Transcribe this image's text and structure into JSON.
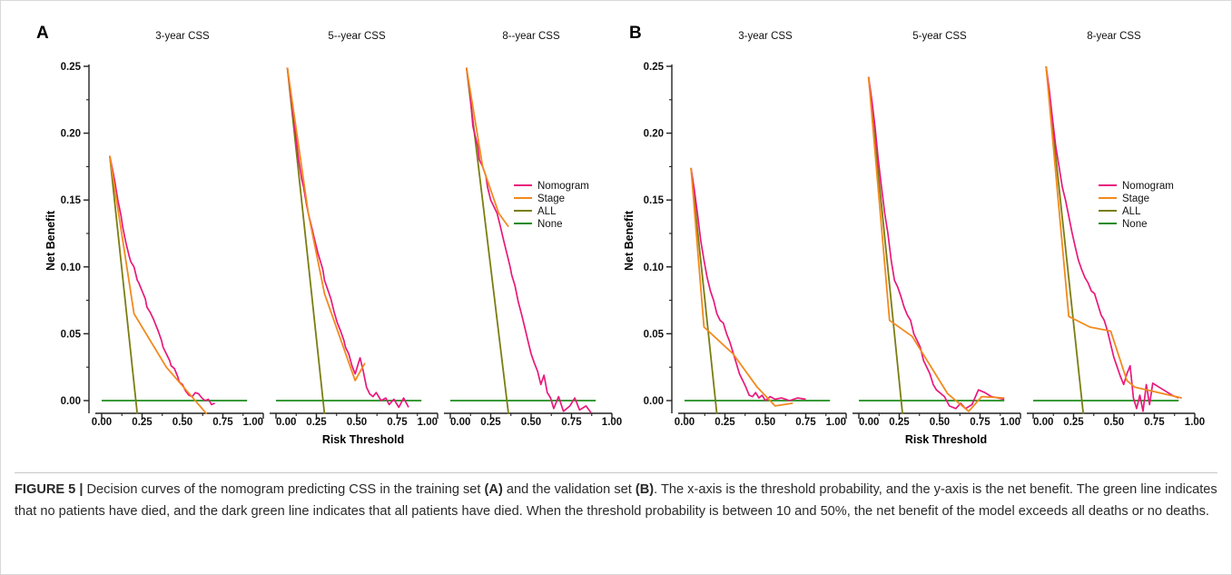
{
  "figure_caption": {
    "label": "FIGURE 5 |",
    "part1": " Decision curves of the nomogram predicting CSS in the training set ",
    "ref_a": "(A)",
    "part2": " and the validation set ",
    "ref_b": "(B)",
    "part3": ". The x-axis is the threshold probability, and the y-axis is the net benefit. The green line indicates that no patients have died, and the dark green line indicates that all patients have died. When the threshold probability is between 10 and 50%, the net benefit of the model exceeds all deaths or no deaths."
  },
  "colors": {
    "nomogram": "#e8197c",
    "stage": "#f28a1e",
    "all": "#7b7d12",
    "none": "#1d8b1d",
    "axis": "#222222"
  },
  "chart_data": [
    {
      "type": "line",
      "panel_label": "A",
      "ylabel": "Net Benefit",
      "xlabel": "Risk Threshold",
      "ylim": [
        -0.01,
        0.25
      ],
      "xlim": [
        0,
        1.0
      ],
      "yticks": [
        "0.00",
        "0.05",
        "0.10",
        "0.15",
        "0.20",
        "0.25"
      ],
      "xtick_labels": [
        "0.00",
        "0.25",
        "0.50",
        "0.75",
        "1.00"
      ],
      "legend": [
        "Nomogram",
        "Stage",
        "ALL",
        "None"
      ],
      "legend_position": "right",
      "subplots": [
        {
          "title": "3-year CSS",
          "series": [
            {
              "name": "Nomogram",
              "x": [
                0.05,
                0.08,
                0.1,
                0.12,
                0.13,
                0.15,
                0.17,
                0.18,
                0.2,
                0.22,
                0.23,
                0.25,
                0.27,
                0.28,
                0.3,
                0.32,
                0.33,
                0.35,
                0.37,
                0.38,
                0.4,
                0.42,
                0.43,
                0.45,
                0.47,
                0.48,
                0.5,
                0.52,
                0.54,
                0.56,
                0.58,
                0.6,
                0.62,
                0.64,
                0.66,
                0.68,
                0.7
              ],
              "y": [
                0.183,
                0.165,
                0.15,
                0.138,
                0.13,
                0.118,
                0.108,
                0.104,
                0.1,
                0.09,
                0.088,
                0.082,
                0.076,
                0.07,
                0.066,
                0.061,
                0.058,
                0.052,
                0.045,
                0.04,
                0.035,
                0.03,
                0.026,
                0.024,
                0.018,
                0.014,
                0.012,
                0.007,
                0.004,
                0.003,
                0.006,
                0.005,
                0.002,
                0.0,
                0.001,
                -0.003,
                -0.002
              ]
            },
            {
              "name": "Stage",
              "x": [
                0.05,
                0.2,
                0.4,
                0.65
              ],
              "y": [
                0.183,
                0.065,
                0.025,
                -0.01
              ]
            },
            {
              "name": "ALL",
              "x": [
                0.05,
                0.22
              ],
              "y": [
                0.183,
                -0.01
              ]
            },
            {
              "name": "None",
              "x": [
                0.0,
                0.9
              ],
              "y": [
                0.0,
                0.0
              ]
            }
          ]
        },
        {
          "title": "5--year CSS",
          "series": [
            {
              "name": "Nomogram",
              "x": [
                0.07,
                0.1,
                0.12,
                0.14,
                0.16,
                0.17,
                0.19,
                0.2,
                0.22,
                0.24,
                0.26,
                0.27,
                0.29,
                0.3,
                0.32,
                0.34,
                0.36,
                0.38,
                0.4,
                0.42,
                0.43,
                0.45,
                0.47,
                0.49,
                0.51,
                0.52,
                0.54,
                0.56,
                0.58,
                0.6,
                0.62,
                0.65,
                0.68,
                0.7,
                0.73,
                0.76,
                0.79,
                0.82
              ],
              "y": [
                0.249,
                0.22,
                0.2,
                0.18,
                0.165,
                0.16,
                0.146,
                0.14,
                0.13,
                0.12,
                0.11,
                0.106,
                0.098,
                0.09,
                0.083,
                0.076,
                0.066,
                0.058,
                0.052,
                0.045,
                0.04,
                0.035,
                0.026,
                0.02,
                0.028,
                0.032,
                0.022,
                0.01,
                0.005,
                0.003,
                0.006,
                0.0,
                0.002,
                -0.003,
                0.001,
                -0.005,
                0.002,
                -0.005
              ]
            },
            {
              "name": "Stage",
              "x": [
                0.07,
                0.2,
                0.3,
                0.49,
                0.55
              ],
              "y": [
                0.249,
                0.14,
                0.08,
                0.015,
                0.028
              ]
            },
            {
              "name": "ALL",
              "x": [
                0.07,
                0.3
              ],
              "y": [
                0.249,
                -0.01
              ]
            },
            {
              "name": "None",
              "x": [
                0.0,
                0.9
              ],
              "y": [
                0.0,
                0.0
              ]
            }
          ]
        },
        {
          "title": "8--year CSS",
          "series": [
            {
              "name": "Nomogram",
              "x": [
                0.1,
                0.12,
                0.14,
                0.15,
                0.17,
                0.18,
                0.2,
                0.22,
                0.23,
                0.25,
                0.27,
                0.29,
                0.31,
                0.33,
                0.35,
                0.37,
                0.38,
                0.4,
                0.42,
                0.44,
                0.46,
                0.48,
                0.5,
                0.52,
                0.54,
                0.56,
                0.58,
                0.6,
                0.62,
                0.64,
                0.67,
                0.7,
                0.74,
                0.77,
                0.8,
                0.84,
                0.87
              ],
              "y": [
                0.249,
                0.232,
                0.205,
                0.2,
                0.19,
                0.18,
                0.175,
                0.168,
                0.16,
                0.15,
                0.145,
                0.14,
                0.13,
                0.12,
                0.11,
                0.1,
                0.094,
                0.086,
                0.074,
                0.065,
                0.055,
                0.045,
                0.035,
                0.028,
                0.022,
                0.012,
                0.019,
                0.006,
                0.002,
                -0.006,
                0.003,
                -0.008,
                -0.004,
                0.002,
                -0.007,
                -0.004,
                -0.009
              ]
            },
            {
              "name": "Stage",
              "x": [
                0.1,
                0.2,
                0.3,
                0.36
              ],
              "y": [
                0.249,
                0.175,
                0.14,
                0.13
              ]
            },
            {
              "name": "ALL",
              "x": [
                0.1,
                0.36
              ],
              "y": [
                0.249,
                -0.01
              ]
            },
            {
              "name": "None",
              "x": [
                0.0,
                0.9
              ],
              "y": [
                0.0,
                0.0
              ]
            }
          ]
        }
      ]
    },
    {
      "type": "line",
      "panel_label": "B",
      "ylabel": "Net Benefit",
      "xlabel": "Risk Threshold",
      "ylim": [
        -0.01,
        0.25
      ],
      "xlim": [
        0,
        1.0
      ],
      "yticks": [
        "0.00",
        "0.05",
        "0.10",
        "0.15",
        "0.20",
        "0.25"
      ],
      "xtick_labels": [
        "0.00",
        "0.25",
        "0.50",
        "0.75",
        "1.00"
      ],
      "legend": [
        "Nomogram",
        "Stage",
        "ALL",
        "None"
      ],
      "legend_position": "right",
      "subplots": [
        {
          "title": "3-year CSS",
          "series": [
            {
              "name": "Nomogram",
              "x": [
                0.04,
                0.06,
                0.08,
                0.1,
                0.12,
                0.14,
                0.16,
                0.18,
                0.2,
                0.22,
                0.24,
                0.26,
                0.28,
                0.3,
                0.32,
                0.34,
                0.36,
                0.38,
                0.4,
                0.42,
                0.44,
                0.46,
                0.48,
                0.5,
                0.53,
                0.56,
                0.6,
                0.65,
                0.7,
                0.75
              ],
              "y": [
                0.174,
                0.158,
                0.14,
                0.12,
                0.105,
                0.092,
                0.082,
                0.075,
                0.065,
                0.06,
                0.058,
                0.05,
                0.044,
                0.036,
                0.028,
                0.02,
                0.015,
                0.01,
                0.004,
                0.003,
                0.006,
                0.002,
                0.004,
                0.0,
                0.003,
                0.001,
                0.002,
                0.0,
                0.002,
                0.001
              ]
            },
            {
              "name": "Stage",
              "x": [
                0.04,
                0.12,
                0.3,
                0.45,
                0.56,
                0.67
              ],
              "y": [
                0.174,
                0.055,
                0.035,
                0.01,
                -0.004,
                -0.002
              ]
            },
            {
              "name": "ALL",
              "x": [
                0.04,
                0.2
              ],
              "y": [
                0.174,
                -0.01
              ]
            },
            {
              "name": "None",
              "x": [
                0.0,
                0.9
              ],
              "y": [
                0.0,
                0.0
              ]
            }
          ]
        },
        {
          "title": "5-year CSS",
          "series": [
            {
              "name": "Nomogram",
              "x": [
                0.06,
                0.08,
                0.1,
                0.12,
                0.14,
                0.16,
                0.18,
                0.19,
                0.2,
                0.22,
                0.24,
                0.26,
                0.28,
                0.3,
                0.32,
                0.34,
                0.36,
                0.38,
                0.4,
                0.42,
                0.44,
                0.46,
                0.48,
                0.5,
                0.53,
                0.56,
                0.6,
                0.63,
                0.66,
                0.7,
                0.74,
                0.78,
                0.82,
                0.86,
                0.9
              ],
              "y": [
                0.242,
                0.225,
                0.205,
                0.18,
                0.16,
                0.14,
                0.125,
                0.115,
                0.105,
                0.09,
                0.085,
                0.078,
                0.07,
                0.064,
                0.06,
                0.05,
                0.045,
                0.04,
                0.03,
                0.025,
                0.02,
                0.012,
                0.008,
                0.006,
                0.003,
                -0.004,
                -0.006,
                -0.002,
                -0.006,
                -0.003,
                0.008,
                0.006,
                0.003,
                0.002,
                0.001
              ]
            },
            {
              "name": "Stage",
              "x": [
                0.06,
                0.19,
                0.33,
                0.55,
                0.68,
                0.76,
                0.9
              ],
              "y": [
                0.242,
                0.06,
                0.048,
                0.005,
                -0.008,
                0.003,
                0.002
              ]
            },
            {
              "name": "ALL",
              "x": [
                0.06,
                0.27
              ],
              "y": [
                0.242,
                -0.01
              ]
            },
            {
              "name": "None",
              "x": [
                0.0,
                0.9
              ],
              "y": [
                0.0,
                0.0
              ]
            }
          ]
        },
        {
          "title": "8-year CSS",
          "series": [
            {
              "name": "Nomogram",
              "x": [
                0.08,
                0.1,
                0.12,
                0.14,
                0.16,
                0.18,
                0.2,
                0.22,
                0.24,
                0.26,
                0.28,
                0.3,
                0.32,
                0.34,
                0.36,
                0.38,
                0.4,
                0.42,
                0.44,
                0.46,
                0.48,
                0.5,
                0.52,
                0.54,
                0.56,
                0.58,
                0.6,
                0.62,
                0.64,
                0.66,
                0.68,
                0.7,
                0.72,
                0.74,
                0.78,
                0.82,
                0.86,
                0.9
              ],
              "y": [
                0.25,
                0.232,
                0.21,
                0.19,
                0.175,
                0.16,
                0.15,
                0.138,
                0.126,
                0.115,
                0.105,
                0.098,
                0.092,
                0.088,
                0.082,
                0.08,
                0.072,
                0.064,
                0.06,
                0.052,
                0.042,
                0.032,
                0.025,
                0.018,
                0.012,
                0.02,
                0.026,
                0.002,
                -0.006,
                0.004,
                -0.008,
                0.012,
                -0.003,
                0.013,
                0.01,
                0.007,
                0.004,
                0.002
              ]
            },
            {
              "name": "Stage",
              "x": [
                0.08,
                0.22,
                0.35,
                0.48,
                0.58,
                0.63,
                0.92
              ],
              "y": [
                0.25,
                0.063,
                0.055,
                0.052,
                0.015,
                0.01,
                0.002
              ]
            },
            {
              "name": "ALL",
              "x": [
                0.08,
                0.31
              ],
              "y": [
                0.25,
                -0.01
              ]
            },
            {
              "name": "None",
              "x": [
                0.0,
                0.9
              ],
              "y": [
                0.0,
                0.0
              ]
            }
          ]
        }
      ]
    }
  ]
}
